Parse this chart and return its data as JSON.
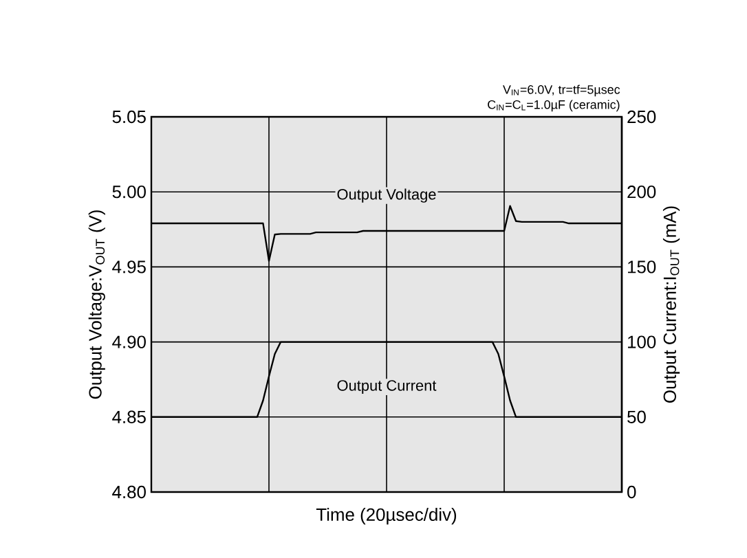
{
  "chart_data": {
    "type": "line",
    "xlabel": "Time (20µsec/div)",
    "ylabel": "Output Voltage:V$_{OUT}$ (V)",
    "y2label": "Output Current:I$_{OUT}$ (mA)",
    "annotations": [
      "V$_{IN}$=6.0V, tr=tf=5µsec",
      "C$_{IN}$=C$_{L}$=1.0µF (ceramic)"
    ],
    "categories": [
      null,
      null,
      null,
      null,
      null,
      null,
      null,
      null,
      null,
      null,
      null,
      null,
      null,
      null,
      null,
      null,
      null,
      null,
      null,
      null,
      null,
      null,
      null,
      null,
      null,
      null,
      null,
      null,
      null,
      null,
      null,
      null,
      null,
      null,
      null,
      null,
      null,
      null,
      null,
      null,
      null,
      null,
      null,
      null,
      null,
      null,
      null,
      null,
      null,
      null,
      null,
      null,
      null,
      null,
      null,
      null,
      null,
      null,
      null,
      null,
      null,
      null,
      null,
      null,
      null,
      null,
      null,
      null,
      null,
      null,
      null,
      null,
      null,
      null,
      null,
      null,
      null,
      null,
      null,
      null,
      null
    ],
    "ylim": [
      4.8,
      5.05
    ],
    "yticks": [
      {
        "value": 4.8,
        "label": "4.80"
      },
      {
        "value": 4.85,
        "label": "4.85"
      },
      {
        "value": 4.9,
        "label": "4.90"
      },
      {
        "value": 4.95,
        "label": "4.95"
      },
      {
        "value": 5.0,
        "label": "5.00"
      },
      {
        "value": 5.05,
        "label": "5.05"
      }
    ],
    "y2lim": [
      0,
      250
    ],
    "y2ticks": [
      0,
      50,
      100,
      150,
      200,
      250
    ],
    "grid": true,
    "marker": "none",
    "line_style": "solid",
    "series": [
      {
        "name": "Output Voltage",
        "color": "#000000",
        "values": [
          4.979,
          4.979,
          4.979,
          4.979,
          4.979,
          4.979,
          4.979,
          4.979,
          4.979,
          4.979,
          4.979,
          4.979,
          4.979,
          4.979,
          4.979,
          4.979,
          4.979,
          4.979,
          4.979,
          4.979,
          4.954,
          4.9716,
          4.972,
          4.972,
          4.972,
          4.972,
          4.972,
          4.972,
          4.973,
          4.973,
          4.973,
          4.973,
          4.973,
          4.973,
          4.973,
          4.973,
          4.974,
          4.974,
          4.974,
          4.974,
          4.974,
          4.974,
          4.974,
          4.974,
          4.974,
          4.974,
          4.974,
          4.974,
          4.974,
          4.974,
          4.974,
          4.974,
          4.974,
          4.974,
          4.974,
          4.974,
          4.974,
          4.974,
          4.974,
          4.974,
          4.974,
          4.9906,
          4.9805,
          4.98,
          4.98,
          4.98,
          4.98,
          4.98,
          4.98,
          4.98,
          4.98,
          4.979,
          4.979,
          4.979,
          4.979,
          4.979,
          4.979,
          4.979,
          4.979,
          4.979,
          4.979
        ]
      },
      {
        "name": "Output Current",
        "color": "#000000",
        "axis": "y2",
        "values": [
          50,
          50,
          50,
          50,
          50,
          50,
          50,
          50,
          50,
          50,
          50,
          50,
          50,
          50,
          50,
          50,
          50,
          50,
          50,
          61,
          77,
          92,
          100,
          100,
          100,
          100,
          100,
          100,
          100,
          100,
          100,
          100,
          100,
          100,
          100,
          100,
          100,
          100,
          100,
          100,
          100,
          100,
          100,
          100,
          100,
          100,
          100,
          100,
          100,
          100,
          100,
          100,
          100,
          100,
          100,
          100,
          100,
          100,
          100,
          92,
          77,
          61,
          50,
          50,
          50,
          50,
          50,
          50,
          50,
          50,
          50,
          50,
          50,
          50,
          50,
          50,
          50,
          50,
          50,
          50,
          50
        ]
      }
    ]
  }
}
